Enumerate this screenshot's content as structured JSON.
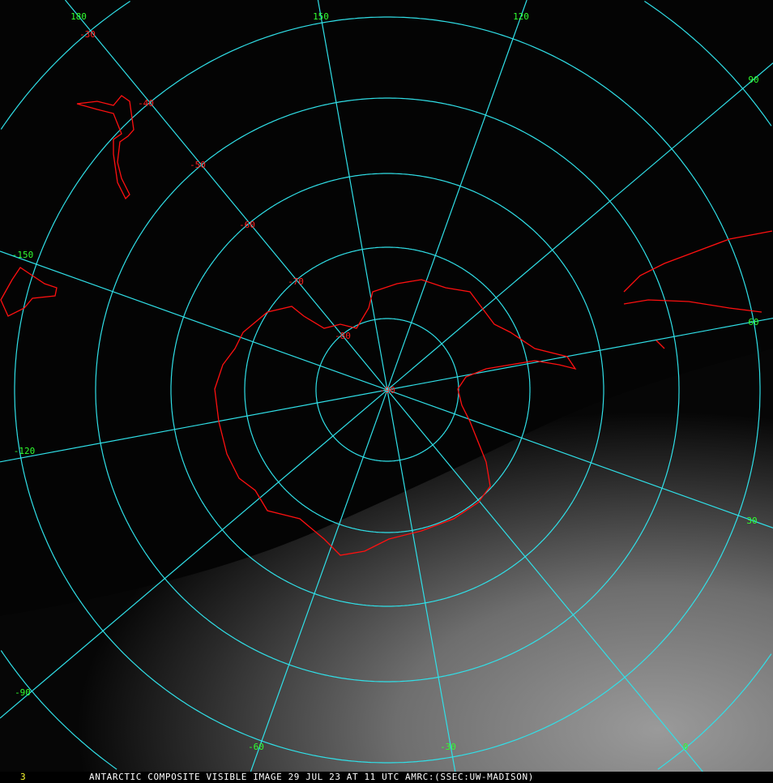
{
  "frame_number": "3",
  "caption": "ANTARCTIC COMPOSITE VISIBLE IMAGE 29 JUL 23 AT 11 UTC AMRC:(SSEC:UW-MADISON)",
  "colors": {
    "grid": "#30e0e8",
    "coastline": "#ff1010",
    "longitude_labels": "#30ff30",
    "latitude_labels": "#ff2020",
    "caption": "#ffffff",
    "frame_number": "#ffff30"
  },
  "longitude_labels": [
    "180",
    "150",
    "120",
    "90",
    "60",
    "30",
    "0",
    "-30",
    "-60",
    "-90",
    "-120",
    "-150"
  ],
  "latitude_labels": [
    "-30",
    "-40",
    "-50",
    "-60",
    "-70",
    "-80",
    "-90"
  ]
}
